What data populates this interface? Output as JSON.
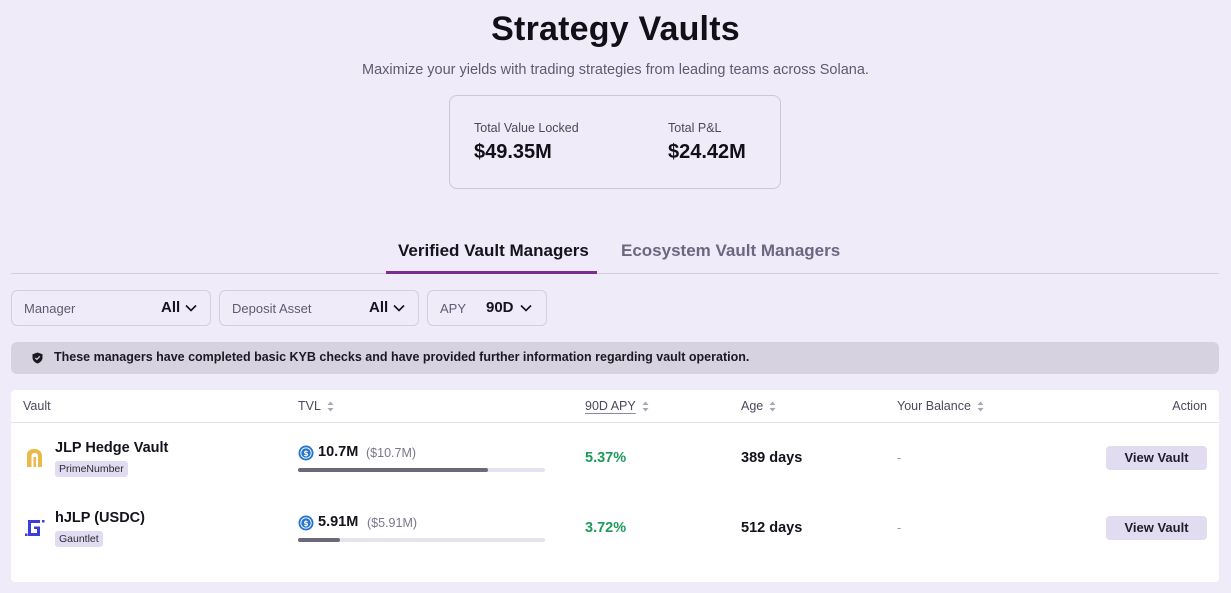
{
  "hero": {
    "title": "Strategy Vaults",
    "subtitle": "Maximize your yields with trading strategies from leading teams across Solana."
  },
  "stats": {
    "tvl_label": "Total Value Locked",
    "tvl_value": "$49.35M",
    "pnl_label": "Total P&L",
    "pnl_value": "$24.42M"
  },
  "tabs": [
    {
      "label": "Verified Vault Managers",
      "active": true
    },
    {
      "label": "Ecosystem Vault Managers",
      "active": false
    }
  ],
  "filters": {
    "manager": {
      "label": "Manager",
      "value": "All"
    },
    "deposit_asset": {
      "label": "Deposit Asset",
      "value": "All"
    },
    "apy": {
      "label": "APY",
      "value": "90D"
    }
  },
  "notice": {
    "icon": "shield-icon",
    "text": "These managers have completed basic KYB checks and have provided further information regarding vault operation."
  },
  "table": {
    "columns": {
      "vault": "Vault",
      "tvl": "TVL",
      "apy": "90D APY",
      "age": "Age",
      "balance": "Your Balance",
      "action": "Action"
    },
    "rows": [
      {
        "name": "JLP Hedge Vault",
        "manager": "PrimeNumber",
        "logo": "primenumber-logo",
        "tvl": "10.7M",
        "tvl_usd": "($10.7M)",
        "tvl_fill": 0.77,
        "apy": "5.37%",
        "age": "389 days",
        "balance": "-",
        "action": "View Vault"
      },
      {
        "name": "hJLP (USDC)",
        "manager": "Gauntlet",
        "logo": "gauntlet-logo",
        "tvl": "5.91M",
        "tvl_usd": "($5.91M)",
        "tvl_fill": 0.17,
        "apy": "3.72%",
        "age": "512 days",
        "balance": "-",
        "action": "View Vault"
      }
    ]
  },
  "colors": {
    "background": "#efebf8",
    "accent": "#7a2e8f",
    "apy_green": "#1e9a5a",
    "usdc_blue": "#2775ca"
  }
}
